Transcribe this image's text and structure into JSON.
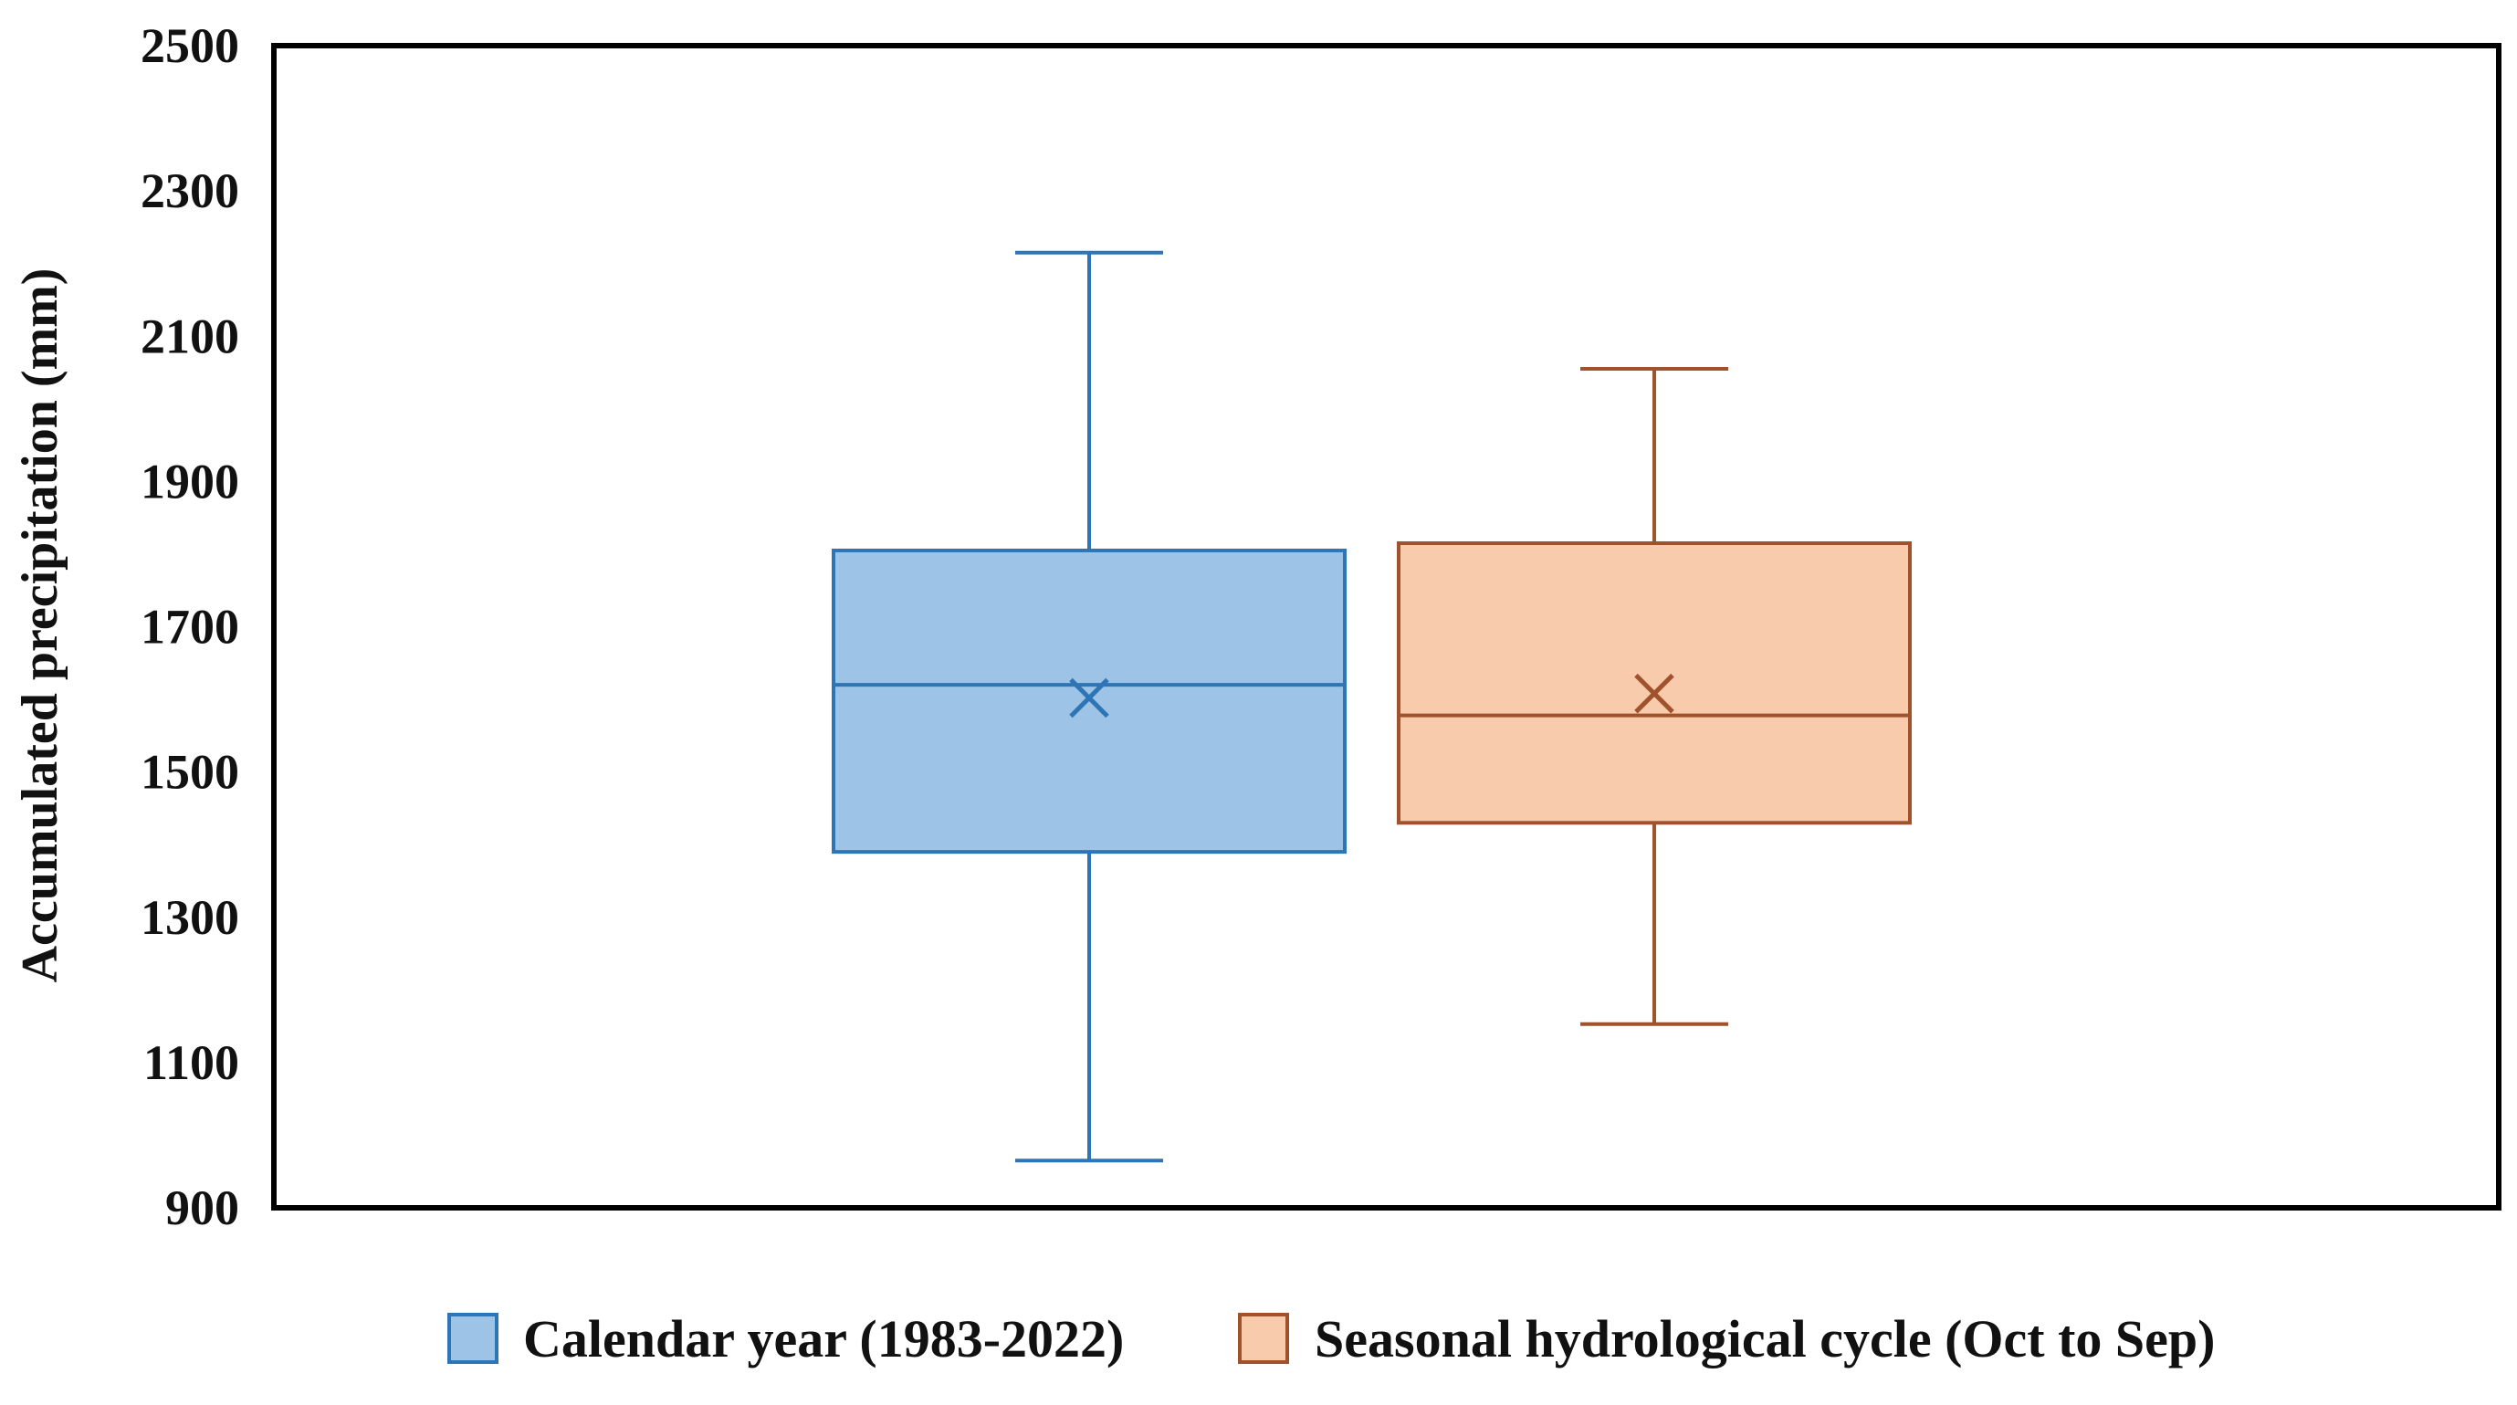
{
  "chart_data": {
    "type": "box",
    "ylabel": "Accumulated precipitation (mm)",
    "ylim": [
      900,
      2500
    ],
    "yticks": [
      900,
      1100,
      1300,
      1500,
      1700,
      1900,
      2100,
      2300,
      2500
    ],
    "grid": false,
    "legend_position": "bottom",
    "series": [
      {
        "name": "Calendar year (1983-2022)",
        "min": 965,
        "q1": 1390,
        "median": 1620,
        "mean": 1602,
        "q3": 1805,
        "max": 2215,
        "fill_color": "#9DC3E6",
        "line_color": "#2E75B6"
      },
      {
        "name": "Seasonal hydrological cycle (Oct to Sep)",
        "min": 1153,
        "q1": 1430,
        "median": 1578,
        "mean": 1608,
        "q3": 1815,
        "max": 2055,
        "fill_color": "#F8CBAD",
        "line_color": "#A0522D"
      }
    ]
  }
}
